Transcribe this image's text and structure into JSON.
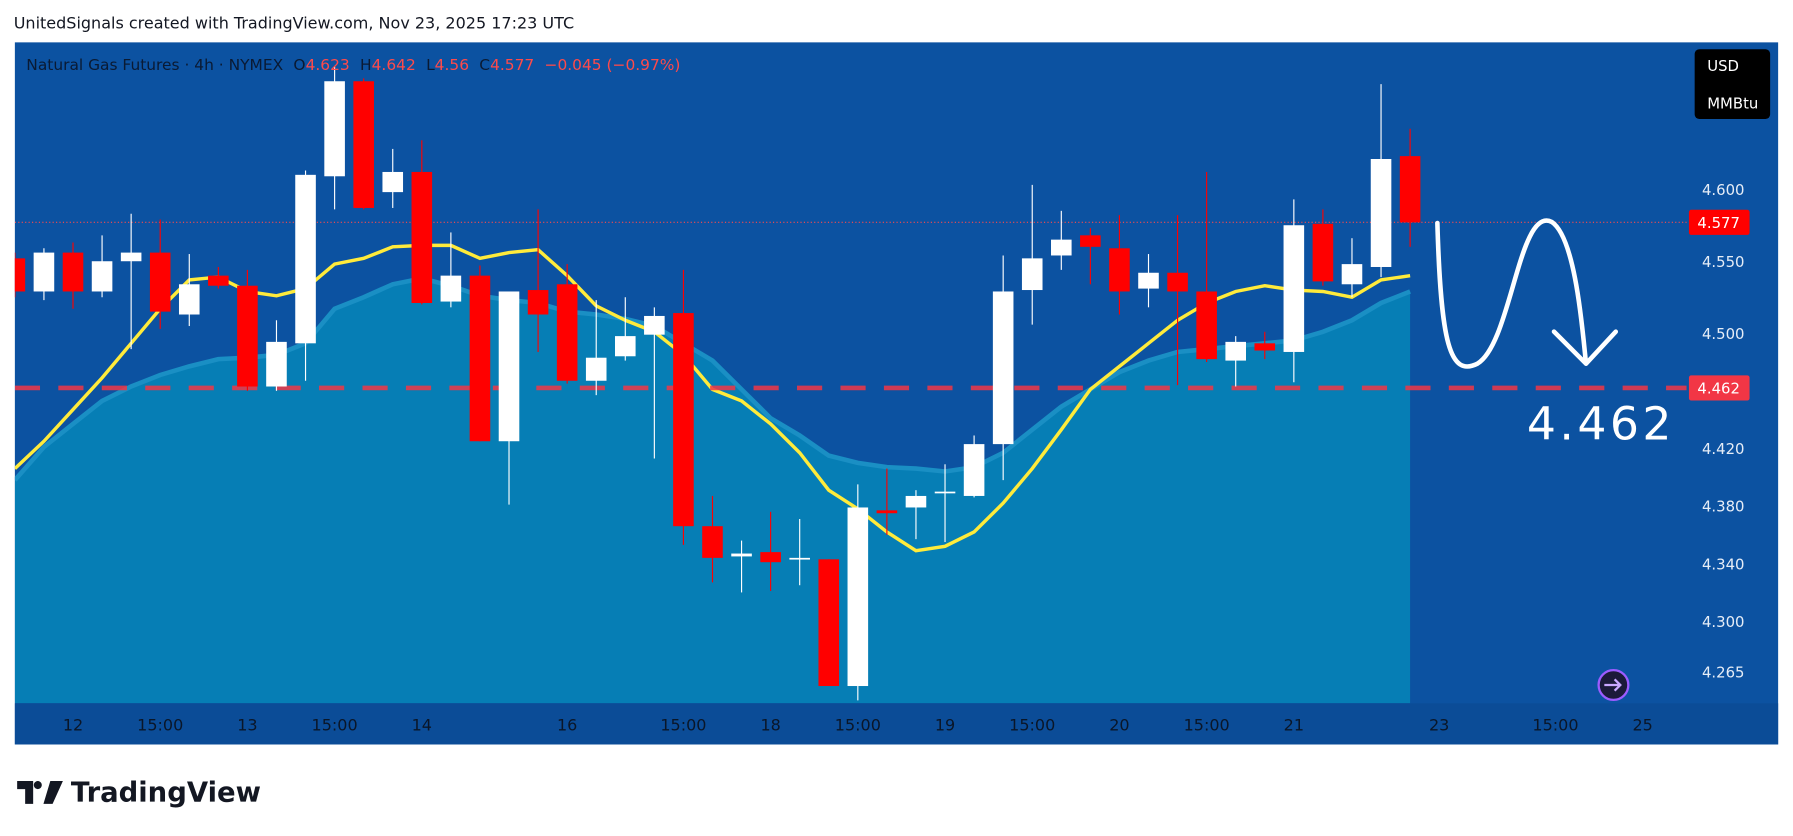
{
  "header": {
    "caption": "UnitedSignals created with TradingView.com, Nov 23, 2025 17:23 UTC"
  },
  "chart_data": {
    "type": "candlestick",
    "title": "Natural Gas Futures · 4h · NYMEX",
    "ohlc_labels": [
      "O",
      "H",
      "L",
      "C"
    ],
    "change": "−0.045 (−0.97%)",
    "unit": [
      "USD",
      "MMBtu"
    ],
    "categories": [
      null,
      null,
      "12",
      null,
      null,
      "15:00",
      null,
      null,
      "13",
      null,
      null,
      "15:00",
      null,
      null,
      "14",
      null,
      null,
      null,
      null,
      "16",
      null,
      null,
      null,
      "15:00",
      null,
      null,
      "18",
      null,
      null,
      "15:00",
      null,
      null,
      "19",
      null,
      null,
      "15:00",
      null,
      null,
      "20",
      null,
      null,
      "15:00",
      null,
      null,
      "21",
      null,
      null,
      null,
      null,
      "23",
      null,
      null,
      null,
      "15:00",
      null,
      null,
      "25",
      null
    ],
    "open": [
      4.552,
      4.529,
      4.556,
      4.529,
      4.55,
      4.556,
      4.513,
      4.54,
      4.533,
      4.463,
      4.493,
      4.609,
      4.675,
      4.598,
      4.612,
      4.522,
      4.54,
      4.425,
      4.53,
      4.534,
      4.467,
      4.484,
      4.499,
      4.514,
      4.366,
      4.345,
      4.348,
      4.343,
      4.343,
      4.255,
      4.377,
      4.379,
      4.389,
      4.387,
      4.423,
      4.53,
      4.554,
      4.568,
      4.559,
      4.531,
      4.542,
      4.529,
      4.481,
      4.493,
      4.487,
      4.576,
      4.534,
      4.546,
      4.623,
      null,
      null,
      null,
      null,
      null,
      null,
      null,
      null,
      null
    ],
    "high": [
      4.556,
      4.559,
      4.563,
      4.568,
      4.583,
      4.579,
      4.555,
      4.546,
      4.544,
      4.509,
      4.613,
      4.685,
      4.677,
      4.628,
      4.634,
      4.57,
      4.547,
      4.529,
      4.586,
      4.548,
      4.523,
      4.525,
      4.518,
      4.544,
      4.387,
      4.356,
      4.376,
      4.371,
      4.343,
      4.395,
      4.406,
      4.391,
      4.409,
      4.429,
      4.554,
      4.603,
      4.585,
      4.573,
      4.582,
      4.555,
      4.582,
      4.612,
      4.498,
      4.501,
      4.593,
      4.586,
      4.566,
      4.673,
      4.642,
      null,
      null,
      null,
      null,
      null,
      null,
      null,
      null,
      null
    ],
    "low": [
      4.525,
      4.523,
      4.517,
      4.525,
      4.489,
      4.503,
      4.505,
      4.531,
      4.46,
      4.46,
      4.467,
      4.586,
      4.586,
      4.587,
      4.52,
      4.518,
      4.425,
      4.381,
      4.487,
      4.465,
      4.457,
      4.481,
      4.413,
      4.353,
      4.327,
      4.32,
      4.321,
      4.325,
      4.255,
      4.245,
      4.36,
      4.357,
      4.355,
      4.386,
      4.398,
      4.506,
      4.544,
      4.534,
      4.513,
      4.518,
      4.464,
      4.48,
      4.463,
      4.482,
      4.466,
      4.533,
      4.525,
      4.539,
      4.56,
      null,
      null,
      null,
      null,
      null,
      null,
      null,
      null,
      null
    ],
    "close": [
      4.529,
      4.556,
      4.529,
      4.55,
      4.556,
      4.515,
      4.534,
      4.533,
      4.463,
      4.494,
      4.61,
      4.675,
      4.587,
      4.612,
      4.521,
      4.54,
      4.425,
      4.529,
      4.513,
      4.467,
      4.483,
      4.498,
      4.512,
      4.366,
      4.344,
      4.347,
      4.341,
      4.344,
      4.255,
      4.379,
      4.375,
      4.387,
      4.39,
      4.423,
      4.529,
      4.552,
      4.565,
      4.56,
      4.529,
      4.542,
      4.529,
      4.482,
      4.494,
      4.488,
      4.575,
      4.536,
      4.548,
      4.621,
      4.577,
      null,
      null,
      null,
      null,
      null,
      null,
      null,
      null,
      null
    ],
    "up_color": "#ffffff",
    "down_color": "#ff0000",
    "series": [
      {
        "color": "#ffeb3b",
        "values": [
          4.406,
          4.425,
          4.447,
          4.469,
          4.493,
          4.517,
          4.537,
          4.539,
          4.529,
          4.526,
          4.531,
          4.548,
          4.552,
          4.56,
          4.561,
          4.561,
          4.552,
          4.556,
          4.558,
          4.54,
          4.519,
          4.509,
          4.501,
          4.485,
          4.461,
          4.453,
          4.437,
          4.417,
          4.391,
          4.378,
          4.362,
          4.349,
          4.352,
          4.362,
          4.382,
          4.406,
          4.433,
          4.461,
          4.477,
          4.493,
          4.509,
          4.521,
          4.529,
          4.533,
          4.53,
          4.529,
          4.525,
          4.537,
          4.54,
          null,
          null,
          null,
          null,
          null,
          null,
          null,
          null,
          null
        ]
      },
      {
        "color": "#1a8fc4",
        "values": [
          4.398,
          4.421,
          4.437,
          4.453,
          4.463,
          4.471,
          4.477,
          4.482,
          4.483,
          4.485,
          4.493,
          4.517,
          4.525,
          4.534,
          4.538,
          4.533,
          4.526,
          4.523,
          4.521,
          4.515,
          4.513,
          4.51,
          4.505,
          4.493,
          4.481,
          4.461,
          4.441,
          4.429,
          4.415,
          4.41,
          4.407,
          4.406,
          4.404,
          4.407,
          4.417,
          4.433,
          4.449,
          4.461,
          4.473,
          4.481,
          4.487,
          4.489,
          4.491,
          4.493,
          4.495,
          4.501,
          4.509,
          4.521,
          4.529,
          null,
          null,
          null,
          null,
          null,
          null,
          null,
          null,
          null
        ]
      }
    ],
    "level": 4.462,
    "ylim": [
      4.243,
      4.702
    ],
    "yticks": [
      {
        "value": 4.265,
        "label": "4.265"
      },
      {
        "value": 4.3,
        "label": "4.300"
      },
      {
        "value": 4.34,
        "label": "4.340"
      },
      {
        "value": 4.38,
        "label": "4.380"
      },
      {
        "value": 4.42,
        "label": "4.420"
      },
      {
        "value": 4.5,
        "label": "4.500"
      },
      {
        "value": 4.55,
        "label": "4.550"
      },
      {
        "value": 4.6,
        "label": "4.600"
      }
    ],
    "grid": false
  },
  "footer": {
    "brand": "TradingView"
  }
}
